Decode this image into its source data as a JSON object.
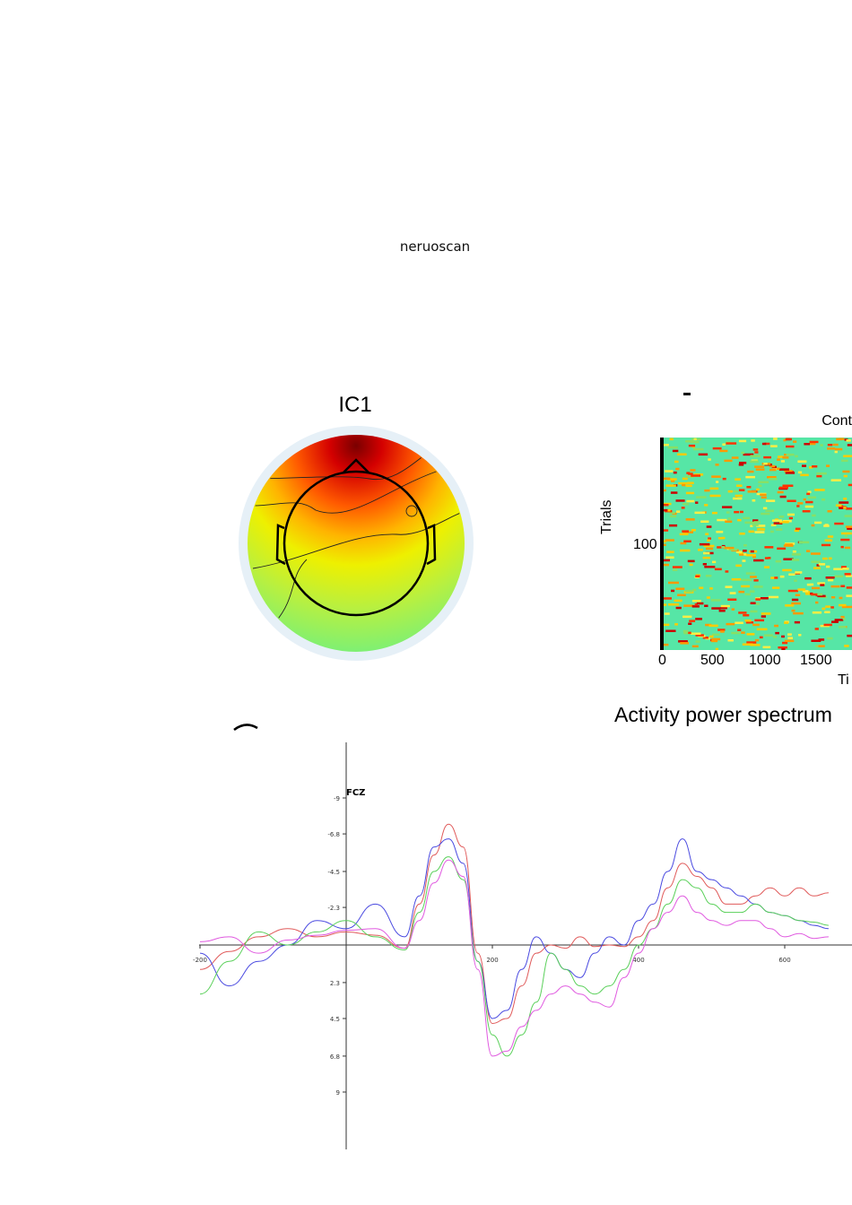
{
  "caption": "neruoscan",
  "topomap": {
    "title": "IC1"
  },
  "erp_image": {
    "title_partial": "Cont",
    "ylabel": "Trials",
    "ytick": "100",
    "xticks": [
      "0",
      "500",
      "1000",
      "1500"
    ],
    "xunit_partial": "Ti"
  },
  "power_spectrum": {
    "title": "Activity power spectrum"
  },
  "chart_data": [
    {
      "type": "line",
      "title": "",
      "channel_label": "FCZ",
      "xlabel": "",
      "ylabel": "",
      "xlim": [
        -200,
        660
      ],
      "ylim": [
        9,
        -9
      ],
      "x_ticks": [
        "-200",
        "200",
        "400",
        "600"
      ],
      "y_ticks": [
        "-9",
        "-6.8",
        "-4.5",
        "-2.3",
        "2.3",
        "4.5",
        "6.8",
        "9"
      ],
      "series_colors": [
        "#e05a5a",
        "#4a4ae0",
        "#5ad05a",
        "#e05ae0"
      ],
      "series": [
        {
          "x": [
            -200,
            -160,
            -120,
            -80,
            -40,
            0,
            40,
            80,
            100,
            120,
            140,
            160,
            180,
            200,
            220,
            240,
            260,
            280,
            300,
            320,
            340,
            360,
            380,
            400,
            420,
            440,
            460,
            480,
            500,
            520,
            540,
            560,
            580,
            600,
            620,
            640,
            660
          ],
          "values": [
            1.5,
            0.4,
            -0.5,
            -1.0,
            -0.5,
            -0.8,
            -0.6,
            0.2,
            -2.5,
            -5.5,
            -7.4,
            -6.0,
            0.5,
            4.8,
            4.5,
            2.5,
            0.5,
            0.0,
            0.2,
            -0.5,
            0.1,
            0.0,
            0.1,
            -0.5,
            -1.5,
            -3.5,
            -5.0,
            -4.2,
            -3.5,
            -2.5,
            -2.5,
            -3.0,
            -3.5,
            -3.0,
            -3.5,
            -3.0,
            -3.2
          ]
        },
        {
          "x": [
            -200,
            -160,
            -120,
            -80,
            -40,
            0,
            40,
            80,
            100,
            120,
            140,
            160,
            180,
            200,
            220,
            240,
            260,
            280,
            300,
            320,
            340,
            360,
            380,
            400,
            420,
            440,
            460,
            480,
            500,
            520,
            540,
            560,
            580,
            600,
            620,
            640,
            660
          ],
          "values": [
            0.5,
            2.5,
            1.0,
            0.0,
            -1.5,
            -1.0,
            -2.5,
            -0.5,
            -3.0,
            -6.0,
            -6.5,
            -5.0,
            1.0,
            4.5,
            4.0,
            1.5,
            -0.5,
            0.5,
            1.5,
            2.0,
            0.5,
            -0.5,
            0.0,
            -1.5,
            -2.5,
            -4.5,
            -6.5,
            -4.5,
            -4.0,
            -3.5,
            -3.0,
            -2.5,
            -2.0,
            -1.8,
            -1.5,
            -1.2,
            -1.0
          ]
        },
        {
          "x": [
            -200,
            -160,
            -120,
            -80,
            -40,
            0,
            40,
            80,
            100,
            120,
            140,
            160,
            180,
            200,
            220,
            240,
            260,
            280,
            300,
            320,
            340,
            360,
            380,
            400,
            420,
            440,
            460,
            480,
            500,
            520,
            540,
            560,
            580,
            600,
            620,
            640,
            660
          ],
          "values": [
            3.0,
            1.0,
            -0.8,
            0.0,
            -0.8,
            -1.5,
            -0.5,
            0.3,
            -2.0,
            -4.5,
            -5.4,
            -4.0,
            1.0,
            5.5,
            6.8,
            5.5,
            3.5,
            0.5,
            1.5,
            2.5,
            3.0,
            2.5,
            1.5,
            0.0,
            -1.0,
            -2.5,
            -4.0,
            -3.5,
            -2.5,
            -2.0,
            -2.0,
            -2.5,
            -2.0,
            -1.8,
            -1.5,
            -1.4,
            -1.2
          ]
        },
        {
          "x": [
            -200,
            -160,
            -120,
            -80,
            -40,
            0,
            40,
            80,
            100,
            120,
            140,
            160,
            180,
            200,
            220,
            240,
            260,
            280,
            300,
            320,
            340,
            360,
            380,
            400,
            420,
            440,
            460,
            480,
            500,
            520,
            540,
            560,
            580,
            600,
            620,
            640,
            660
          ],
          "values": [
            -0.2,
            -0.5,
            0.5,
            -0.3,
            -0.6,
            -0.9,
            -1.0,
            0.2,
            -1.5,
            -3.8,
            -5.2,
            -4.2,
            1.5,
            6.8,
            6.5,
            5.0,
            4.0,
            3.0,
            2.5,
            3.0,
            3.5,
            3.8,
            2.0,
            0.5,
            -1.0,
            -2.0,
            -3.0,
            -2.0,
            -1.5,
            -1.2,
            -1.5,
            -1.5,
            -1.0,
            -0.5,
            -0.7,
            -0.4,
            -0.5
          ]
        }
      ]
    }
  ]
}
